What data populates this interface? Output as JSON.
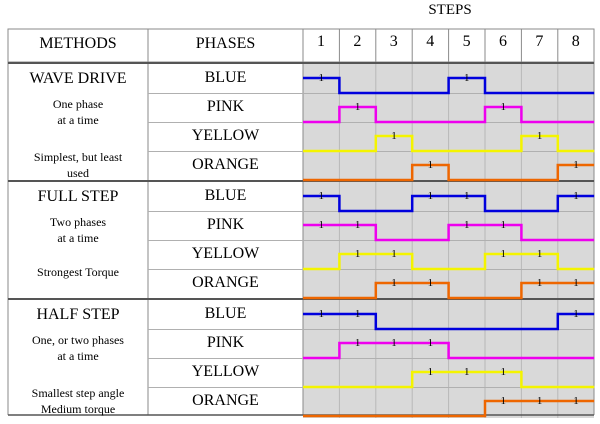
{
  "title": "STEPS",
  "headers": {
    "methods": "METHODS",
    "phases": "PHASES"
  },
  "steps": [
    "1",
    "2",
    "3",
    "4",
    "5",
    "6",
    "7",
    "8"
  ],
  "high_label": "1",
  "phase_colors": {
    "BLUE": "#0000dd",
    "PINK": "#ee00ee",
    "YELLOW": "#f4f400",
    "ORANGE": "#ee6600"
  },
  "methods": [
    {
      "name": "WAVE DRIVE",
      "desc1": "One phase\nat a time",
      "desc2": "Simplest, but least\nused",
      "phases": [
        {
          "name": "BLUE",
          "levels": [
            1,
            0,
            0,
            0,
            1,
            0,
            0,
            0
          ]
        },
        {
          "name": "PINK",
          "levels": [
            0,
            1,
            0,
            0,
            0,
            1,
            0,
            0
          ]
        },
        {
          "name": "YELLOW",
          "levels": [
            0,
            0,
            1,
            0,
            0,
            0,
            1,
            0
          ]
        },
        {
          "name": "ORANGE",
          "levels": [
            0,
            0,
            0,
            1,
            0,
            0,
            0,
            1
          ]
        }
      ]
    },
    {
      "name": "FULL STEP",
      "desc1": "Two phases\nat a time",
      "desc2": "Strongest Torque",
      "phases": [
        {
          "name": "BLUE",
          "levels": [
            1,
            0,
            0,
            1,
            1,
            0,
            0,
            1
          ]
        },
        {
          "name": "PINK",
          "levels": [
            1,
            1,
            0,
            0,
            1,
            1,
            0,
            0
          ]
        },
        {
          "name": "YELLOW",
          "levels": [
            0,
            1,
            1,
            0,
            0,
            1,
            1,
            0
          ]
        },
        {
          "name": "ORANGE",
          "levels": [
            0,
            0,
            1,
            1,
            0,
            0,
            1,
            1
          ]
        }
      ]
    },
    {
      "name": "HALF STEP",
      "desc1": "One, or two phases\nat a time",
      "desc2": "Smallest step angle\nMedium torque",
      "phases": [
        {
          "name": "BLUE",
          "levels": [
            1,
            1,
            0,
            0,
            0,
            0,
            0,
            1
          ]
        },
        {
          "name": "PINK",
          "levels": [
            0,
            1,
            1,
            1,
            0,
            0,
            0,
            0
          ]
        },
        {
          "name": "YELLOW",
          "levels": [
            0,
            0,
            0,
            1,
            1,
            1,
            0,
            0
          ]
        },
        {
          "name": "ORANGE",
          "levels": [
            0,
            0,
            0,
            0,
            0,
            1,
            1,
            1
          ]
        }
      ]
    }
  ]
}
